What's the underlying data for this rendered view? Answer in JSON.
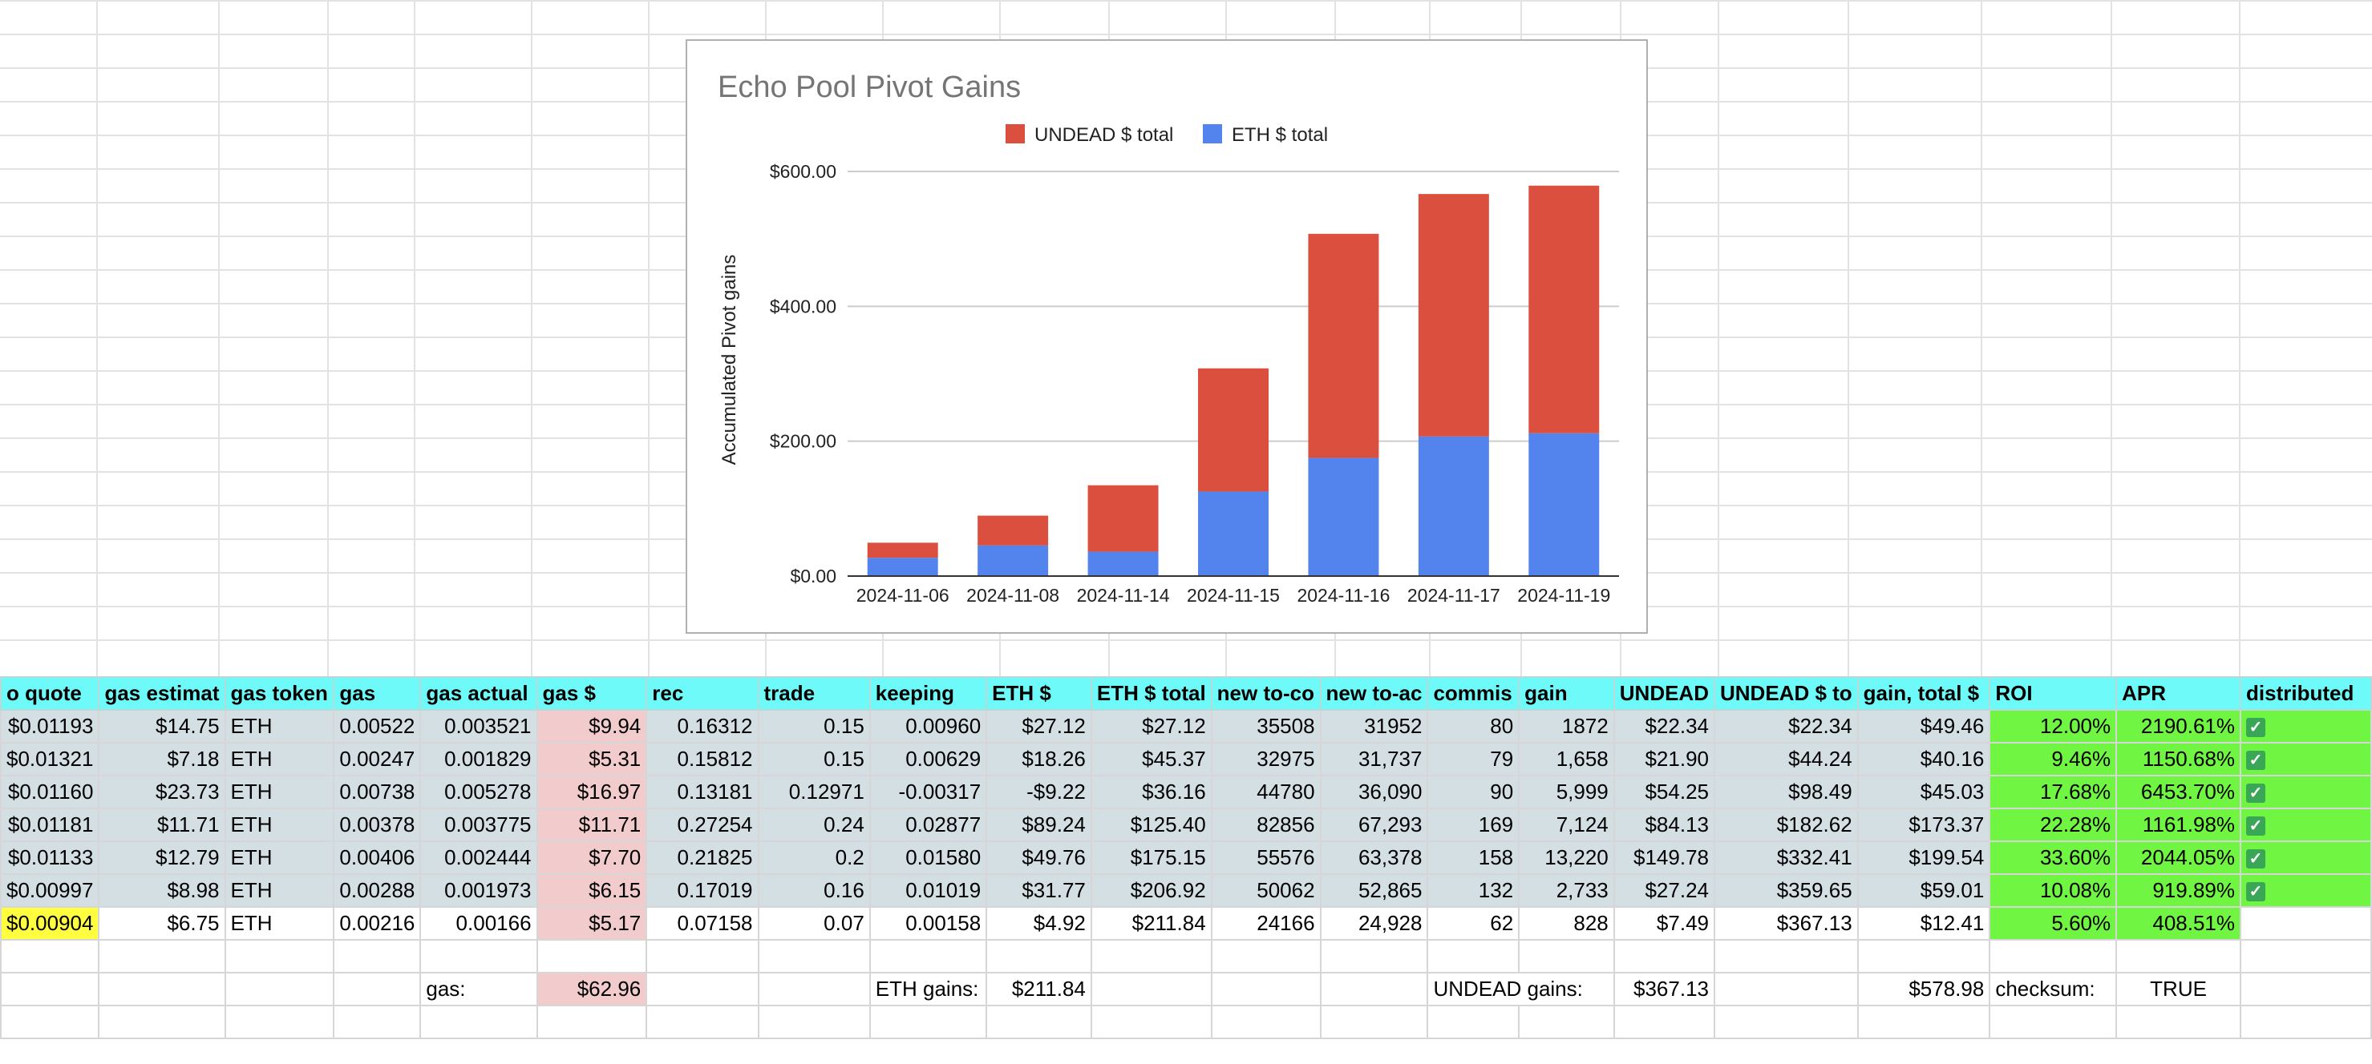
{
  "chart_data": {
    "type": "bar",
    "stacked": true,
    "title": "Echo Pool Pivot Gains",
    "ylabel": "Accumulated Pivot gains",
    "xlabel": "",
    "ylim": [
      0,
      600
    ],
    "yticks": [
      "$0.00",
      "$200.00",
      "$400.00",
      "$600.00"
    ],
    "legend_position": "top",
    "categories": [
      "2024-11-06",
      "2024-11-08",
      "2024-11-14",
      "2024-11-15",
      "2024-11-16",
      "2024-11-17",
      "2024-11-19"
    ],
    "series": [
      {
        "name": "ETH $ total",
        "color": "#5384ed",
        "values": [
          27.12,
          45.37,
          36.16,
          125.4,
          175.15,
          206.92,
          211.84
        ]
      },
      {
        "name": "UNDEAD $ total",
        "color": "#da4f3d",
        "values": [
          22.34,
          44.24,
          98.49,
          182.62,
          332.41,
          359.65,
          367.13
        ]
      }
    ],
    "legend_order": [
      "UNDEAD $ total",
      "ETH $ total"
    ]
  },
  "table": {
    "headers": [
      "o quote",
      "gas estimat",
      "gas token",
      "gas",
      "gas actual",
      "gas $",
      "rec",
      "trade",
      "keeping",
      "ETH $",
      "ETH $ total",
      "new to-co",
      "new to-ac",
      "commis",
      "gain",
      "UNDEAD",
      "UNDEAD $ to",
      "gain, total $",
      "ROI",
      "APR",
      "distributed"
    ],
    "rows": [
      [
        "$0.01193",
        "$14.75",
        "ETH",
        "0.00522",
        "0.003521",
        "$9.94",
        "0.16312",
        "0.15",
        "0.00960",
        "$27.12",
        "$27.12",
        "35508",
        "31952",
        "80",
        "1872",
        "$22.34",
        "$22.34",
        "$49.46",
        "12.00%",
        "2190.61%",
        "✓"
      ],
      [
        "$0.01321",
        "$7.18",
        "ETH",
        "0.00247",
        "0.001829",
        "$5.31",
        "0.15812",
        "0.15",
        "0.00629",
        "$18.26",
        "$45.37",
        "32975",
        "31,737",
        "79",
        "1,658",
        "$21.90",
        "$44.24",
        "$40.16",
        "9.46%",
        "1150.68%",
        "✓"
      ],
      [
        "$0.01160",
        "$23.73",
        "ETH",
        "0.00738",
        "0.005278",
        "$16.97",
        "0.13181",
        "0.12971",
        "-0.00317",
        "-$9.22",
        "$36.16",
        "44780",
        "36,090",
        "90",
        "5,999",
        "$54.25",
        "$98.49",
        "$45.03",
        "17.68%",
        "6453.70%",
        "✓"
      ],
      [
        "$0.01181",
        "$11.71",
        "ETH",
        "0.00378",
        "0.003775",
        "$11.71",
        "0.27254",
        "0.24",
        "0.02877",
        "$89.24",
        "$125.40",
        "82856",
        "67,293",
        "169",
        "7,124",
        "$84.13",
        "$182.62",
        "$173.37",
        "22.28%",
        "1161.98%",
        "✓"
      ],
      [
        "$0.01133",
        "$12.79",
        "ETH",
        "0.00406",
        "0.002444",
        "$7.70",
        "0.21825",
        "0.2",
        "0.01580",
        "$49.76",
        "$175.15",
        "55576",
        "63,378",
        "158",
        "13,220",
        "$149.78",
        "$332.41",
        "$199.54",
        "33.60%",
        "2044.05%",
        "✓"
      ],
      [
        "$0.00997",
        "$8.98",
        "ETH",
        "0.00288",
        "0.001973",
        "$6.15",
        "0.17019",
        "0.16",
        "0.01019",
        "$31.77",
        "$206.92",
        "50062",
        "52,865",
        "132",
        "2,733",
        "$27.24",
        "$359.65",
        "$59.01",
        "10.08%",
        "919.89%",
        "✓"
      ],
      [
        "$0.00904",
        "$6.75",
        "ETH",
        "0.00216",
        "0.00166",
        "$5.17",
        "0.07158",
        "0.07",
        "0.00158",
        "$4.92",
        "$211.84",
        "24166",
        "24,928",
        "62",
        "828",
        "$7.49",
        "$367.13",
        "$12.41",
        "5.60%",
        "408.51%",
        ""
      ]
    ],
    "totals": {
      "gas_label": "gas:",
      "gas_value": "$62.96",
      "eth_label": "ETH gains:",
      "eth_value": "$211.84",
      "undead_label": "UNDEAD gains:",
      "undead_value": "$367.13",
      "total_value": "$578.98",
      "checksum_label": "checksum:",
      "checksum_value": "TRUE"
    }
  },
  "colors": {
    "header_bg": "#6ffafa",
    "row_bg": "#d3dfe3",
    "gas_bg": "#f2cccc",
    "roi_bg": "#6ff542",
    "highlight_bg": "#ffff40",
    "check_bg": "#3aa757"
  }
}
